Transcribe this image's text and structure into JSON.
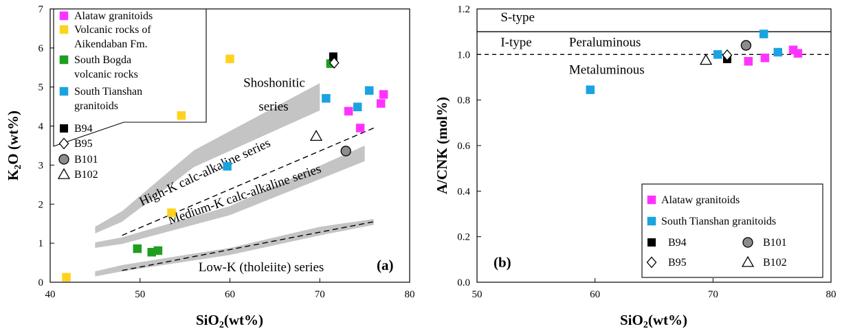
{
  "chart_data": [
    {
      "id": "a",
      "type": "scatter",
      "panel_label": "(a)",
      "xlabel": "SiO2(wt%)",
      "ylabel": "K2O (wt%)",
      "xlim": [
        40,
        80
      ],
      "ylim": [
        0,
        7
      ],
      "xticks": [
        40,
        50,
        60,
        70,
        80
      ],
      "yticks": [
        0,
        1,
        2,
        3,
        4,
        5,
        6,
        7
      ],
      "grid": false,
      "legend_position": "top-left",
      "colors": {
        "magenta": "#ff33ff",
        "yellow": "#ffd21f",
        "green": "#1f9e1f",
        "cyan": "#1aa3e0",
        "band": "#c4c4c4"
      },
      "series": [
        {
          "name": "Alataw granitoids",
          "color": "#ff33ff",
          "marker": "square",
          "points": [
            [
              73.2,
              4.38
            ],
            [
              74.5,
              3.95
            ],
            [
              76.8,
              4.58
            ],
            [
              77.1,
              4.81
            ]
          ]
        },
        {
          "name": "Volcanic rocks of Aikendaban Fm.",
          "color": "#ffd21f",
          "marker": "square",
          "points": [
            [
              41.8,
              0.13
            ],
            [
              53.5,
              1.78
            ],
            [
              54.6,
              4.27
            ],
            [
              60.0,
              5.72
            ]
          ]
        },
        {
          "name": "South Bogda volcanic rocks",
          "color": "#1f9e1f",
          "marker": "square",
          "points": [
            [
              49.7,
              0.86
            ],
            [
              51.3,
              0.77
            ],
            [
              52.0,
              0.81
            ],
            [
              71.2,
              5.6
            ]
          ]
        },
        {
          "name": "South Tianshan granitoids",
          "color": "#1aa3e0",
          "marker": "square",
          "points": [
            [
              59.7,
              2.97
            ],
            [
              70.7,
              4.71
            ],
            [
              74.2,
              4.49
            ],
            [
              75.5,
              4.91
            ]
          ]
        },
        {
          "name": "B94",
          "marker": "filled-square",
          "points": [
            [
              71.5,
              5.78
            ]
          ]
        },
        {
          "name": "B95",
          "marker": "open-diamond",
          "points": [
            [
              71.6,
              5.62
            ]
          ]
        },
        {
          "name": "B101",
          "marker": "grey-circle",
          "points": [
            [
              72.9,
              3.36
            ]
          ]
        },
        {
          "name": "B102",
          "marker": "open-triangle",
          "points": [
            [
              69.6,
              3.74
            ]
          ]
        }
      ],
      "boundaries": {
        "dashed_high_k": [
          [
            48,
            1.2
          ],
          [
            76,
            3.95
          ]
        ],
        "dashed_low_k": [
          [
            48,
            0.3
          ],
          [
            76,
            1.55
          ]
        ],
        "band_shoshonitic": {
          "upper": [
            [
              45,
              1.42
            ],
            [
              48,
              1.82
            ],
            [
              56,
              3.38
            ],
            [
              70,
              5.1
            ]
          ],
          "lower": [
            [
              45,
              1.25
            ],
            [
              48,
              1.55
            ],
            [
              56,
              2.95
            ],
            [
              70,
              4.4
            ]
          ]
        },
        "band_high_k": {
          "upper": [
            [
              45,
              1.02
            ],
            [
              48,
              1.15
            ],
            [
              60,
              1.95
            ],
            [
              75,
              3.5
            ]
          ],
          "lower": [
            [
              45,
              0.88
            ],
            [
              48,
              0.98
            ],
            [
              60,
              1.72
            ],
            [
              75,
              3.1
            ]
          ]
        },
        "band_low_k": {
          "upper": [
            [
              45,
              0.28
            ],
            [
              48,
              0.44
            ],
            [
              60,
              0.88
            ],
            [
              70,
              1.42
            ],
            [
              76,
              1.62
            ]
          ],
          "lower": [
            [
              45,
              0.15
            ],
            [
              48,
              0.28
            ],
            [
              60,
              0.7
            ],
            [
              70,
              1.2
            ],
            [
              76,
              1.47
            ]
          ]
        }
      },
      "annotations": [
        {
          "text": "Shoshonitic",
          "x": 61.5,
          "y": 5.0,
          "angle": 0
        },
        {
          "text": "series",
          "x": 63.2,
          "y": 4.4,
          "angle": 0
        },
        {
          "text": "High-K calc-alkaline series",
          "x": 50.2,
          "y": 1.95,
          "angle": -25
        },
        {
          "text": "Medium-K calc-alkaline series",
          "x": 53.3,
          "y": 1.48,
          "angle": -19
        },
        {
          "text": "Low-K (tholeiite) series",
          "x": 56.5,
          "y": 0.28,
          "angle": 0
        }
      ]
    },
    {
      "id": "b",
      "type": "scatter",
      "panel_label": "(b)",
      "xlabel": "SiO2(wt%)",
      "ylabel": "A/CNK (mol%)",
      "xlim": [
        50,
        80
      ],
      "ylim": [
        0,
        1.2
      ],
      "xticks": [
        50,
        60,
        70,
        80
      ],
      "yticks": [
        0,
        0.2,
        0.4,
        0.6,
        0.8,
        1.0,
        1.2
      ],
      "grid": false,
      "legend_position": "bottom-right",
      "series": [
        {
          "name": "Alataw granitoids",
          "color": "#ff33ff",
          "marker": "square",
          "points": [
            [
              73.0,
              0.97
            ],
            [
              74.4,
              0.985
            ],
            [
              76.8,
              1.02
            ],
            [
              77.2,
              1.005
            ]
          ]
        },
        {
          "name": "South Tianshan granitoids",
          "color": "#1aa3e0",
          "marker": "square",
          "points": [
            [
              59.6,
              0.845
            ],
            [
              70.4,
              1.0
            ],
            [
              74.3,
              1.09
            ],
            [
              75.5,
              1.01
            ]
          ]
        },
        {
          "name": "B94",
          "marker": "filled-square",
          "points": [
            [
              71.2,
              0.98
            ]
          ]
        },
        {
          "name": "B95",
          "marker": "open-diamond",
          "points": [
            [
              71.2,
              0.997
            ]
          ]
        },
        {
          "name": "B101",
          "marker": "grey-circle",
          "points": [
            [
              72.8,
              1.04
            ]
          ]
        },
        {
          "name": "B102",
          "marker": "open-triangle",
          "points": [
            [
              69.4,
              0.975
            ]
          ]
        }
      ],
      "reference_lines": [
        {
          "y": 1.1,
          "style": "solid"
        },
        {
          "y": 1.0,
          "style": "dashed"
        }
      ],
      "annotations": [
        {
          "text": "S-type",
          "x": 52.0,
          "y": 1.145
        },
        {
          "text": "I-type",
          "x": 52.0,
          "y": 1.035
        },
        {
          "text": "Peraluminous",
          "x": 57.8,
          "y": 1.035
        },
        {
          "text": "Metaluminous",
          "x": 57.8,
          "y": 0.915
        }
      ]
    }
  ],
  "legend_a": {
    "items": [
      {
        "lines": [
          "Alataw granitoids"
        ],
        "marker": "square",
        "color": "#ff33ff"
      },
      {
        "lines": [
          "Volcanic rocks of",
          "Aikendaban Fm."
        ],
        "marker": "square",
        "color": "#ffd21f"
      },
      {
        "lines": [
          "South Bogda",
          "volcanic rocks"
        ],
        "marker": "square",
        "color": "#1f9e1f"
      },
      {
        "lines": [
          "South Tianshan",
          "granitoids"
        ],
        "marker": "square",
        "color": "#1aa3e0"
      },
      {
        "lines": [
          "B94"
        ],
        "marker": "filled-square"
      },
      {
        "lines": [
          "B95"
        ],
        "marker": "open-diamond"
      },
      {
        "lines": [
          "B101"
        ],
        "marker": "grey-circle"
      },
      {
        "lines": [
          "B102"
        ],
        "marker": "open-triangle"
      }
    ]
  },
  "legend_b": {
    "items": [
      {
        "label": "Alataw granitoids",
        "marker": "square",
        "color": "#ff33ff"
      },
      {
        "label": "South Tianshan granitoids",
        "marker": "square",
        "color": "#1aa3e0"
      },
      {
        "label": "B94",
        "marker": "filled-square"
      },
      {
        "label": "B101",
        "marker": "grey-circle"
      },
      {
        "label": "B95",
        "marker": "open-diamond"
      },
      {
        "label": "B102",
        "marker": "open-triangle"
      }
    ]
  }
}
